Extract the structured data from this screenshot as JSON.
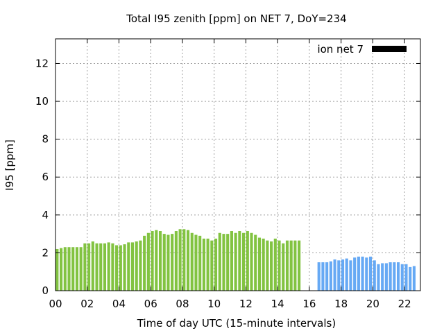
{
  "chart_data": {
    "type": "bar",
    "title": "Total I95 zenith [ppm] on NET 7, DoY=234",
    "xlabel": "Time of day UTC (15-minute intervals)",
    "ylabel": "I95 [ppm]",
    "xlim": [
      0,
      23
    ],
    "ylim": [
      0,
      13.3
    ],
    "xticks": [
      "00",
      "02",
      "04",
      "06",
      "08",
      "10",
      "12",
      "14",
      "16",
      "18",
      "20",
      "22"
    ],
    "yticks": [
      "0",
      "2",
      "4",
      "6",
      "8",
      "10",
      "12"
    ],
    "grid": true,
    "legend": {
      "label": "ion net 7",
      "color": "#000000",
      "placement": "top-right"
    },
    "series": [
      {
        "color": "#82c341",
        "bin_hours": 0.25,
        "start": 0.0,
        "values": [
          2.2,
          2.25,
          2.3,
          2.3,
          2.3,
          2.3,
          2.3,
          2.5,
          2.5,
          2.6,
          2.5,
          2.5,
          2.5,
          2.55,
          2.5,
          2.4,
          2.4,
          2.45,
          2.55,
          2.55,
          2.6,
          2.65,
          2.9,
          3.05,
          3.15,
          3.2,
          3.15,
          3.0,
          2.95,
          3.0,
          3.15,
          3.25,
          3.25,
          3.2,
          3.05,
          2.95,
          2.9,
          2.75,
          2.75,
          2.65,
          2.75,
          3.05,
          3.0,
          3.0,
          3.15,
          3.05,
          3.15,
          3.05,
          3.15,
          3.05,
          2.95,
          2.8,
          2.75,
          2.65,
          2.6,
          2.75,
          2.65,
          2.5,
          2.65,
          2.65,
          2.65,
          2.65
        ]
      },
      {
        "color": "#66a9f4",
        "bin_hours": 0.25,
        "start": 16.5,
        "values": [
          1.5,
          1.5,
          1.5,
          1.55,
          1.65,
          1.6,
          1.65,
          1.7,
          1.6,
          1.75,
          1.8,
          1.8,
          1.75,
          1.8,
          1.6,
          1.4,
          1.45,
          1.45,
          1.5,
          1.5,
          1.5,
          1.4,
          1.4,
          1.25,
          1.3
        ]
      }
    ]
  }
}
